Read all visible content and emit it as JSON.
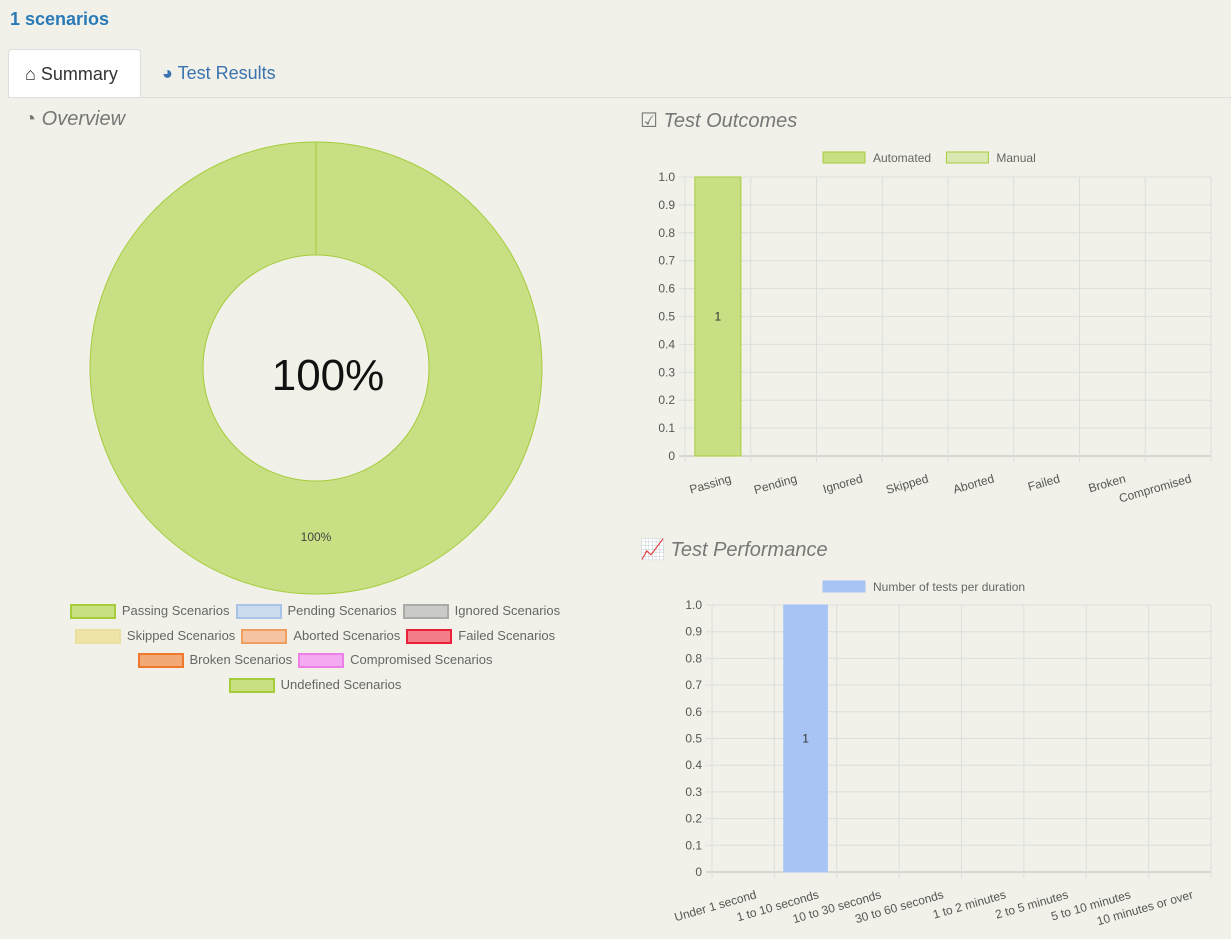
{
  "header": {
    "title": "1 scenarios"
  },
  "tabs": [
    {
      "label": "Summary",
      "icon": "home-icon"
    },
    {
      "label": "Test Results",
      "icon": "dashboard-icon"
    }
  ],
  "sections": {
    "overview": "Overview",
    "outcomes": "Test Outcomes",
    "performance": "Test Performance"
  },
  "legend": [
    {
      "label": "Passing Scenarios",
      "fill": "#c8df84",
      "border": "#a6cc3c"
    },
    {
      "label": "Pending Scenarios",
      "fill": "#ccdcee",
      "border": "#a8c4e8"
    },
    {
      "label": "Ignored Scenarios",
      "fill": "#cacac6",
      "border": "#aaaaaa"
    },
    {
      "label": "Skipped Scenarios",
      "fill": "#efe4a8",
      "border": "#eadf9e"
    },
    {
      "label": "Aborted Scenarios",
      "fill": "#f5c4a2",
      "border": "#f29d60"
    },
    {
      "label": "Failed Scenarios",
      "fill": "#f47f8a",
      "border": "#e8203a"
    },
    {
      "label": "Broken Scenarios",
      "fill": "#f3a975",
      "border": "#f0782c"
    },
    {
      "label": "Compromised Scenarios",
      "fill": "#f3aaf0",
      "border": "#ee7ee8"
    },
    {
      "label": "Undefined Scenarios",
      "fill": "#c8df84",
      "border": "#a6cc3c"
    }
  ],
  "chart_data": [
    {
      "type": "pie",
      "donut": true,
      "center_label": "100%",
      "slices": [
        {
          "name": "Passing Scenarios",
          "value": 100,
          "label": "100%",
          "color": "#c8df84"
        }
      ]
    },
    {
      "type": "bar",
      "categories": [
        "Passing",
        "Pending",
        "Ignored",
        "Skipped",
        "Aborted",
        "Failed",
        "Broken",
        "Compromised"
      ],
      "series": [
        {
          "name": "Automated",
          "values": [
            1,
            0,
            0,
            0,
            0,
            0,
            0,
            0
          ],
          "color": "#c8df84"
        },
        {
          "name": "Manual",
          "values": [
            0,
            0,
            0,
            0,
            0,
            0,
            0,
            0
          ],
          "color": "#d8e8b0"
        }
      ],
      "ylim": [
        0,
        1
      ],
      "yticks": [
        "0",
        "0.1",
        "0.2",
        "0.3",
        "0.4",
        "0.5",
        "0.6",
        "0.7",
        "0.8",
        "0.9",
        "1.0"
      ],
      "data_labels": [
        "1"
      ],
      "grid": true,
      "legend": "top"
    },
    {
      "type": "bar",
      "categories": [
        "Under 1 second",
        "1 to 10 seconds",
        "10 to 30 seconds",
        "30 to 60 seconds",
        "1 to 2 minutes",
        "2 to 5 minutes",
        "5 to 10 minutes",
        "10 minutes or over"
      ],
      "series": [
        {
          "name": "Number of tests per duration",
          "values": [
            0,
            1,
            0,
            0,
            0,
            0,
            0,
            0
          ],
          "color": "#a8c4f4"
        }
      ],
      "ylim": [
        0,
        1
      ],
      "yticks": [
        "0",
        "0.1",
        "0.2",
        "0.3",
        "0.4",
        "0.5",
        "0.6",
        "0.7",
        "0.8",
        "0.9",
        "1.0"
      ],
      "data_labels": [
        "1"
      ],
      "grid": true,
      "legend": "top"
    }
  ]
}
